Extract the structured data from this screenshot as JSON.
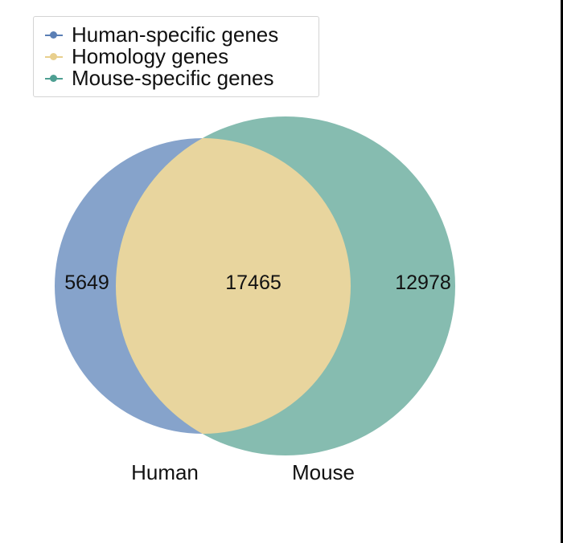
{
  "legend": {
    "items": [
      {
        "label": "Human-specific genes",
        "color": "#5b7fb5"
      },
      {
        "label": "Homology genes",
        "color": "#e8cf8d"
      },
      {
        "label": "Mouse-specific genes",
        "color": "#4e9f92"
      }
    ]
  },
  "venn": {
    "sets": [
      {
        "name": "Human",
        "color": "#86a3cb"
      },
      {
        "name": "Mouse",
        "color": "#86bcb0"
      }
    ],
    "overlap_color": "#e8d59e",
    "regions": {
      "human_only": "5649",
      "overlap": "17465",
      "mouse_only": "12978"
    }
  }
}
